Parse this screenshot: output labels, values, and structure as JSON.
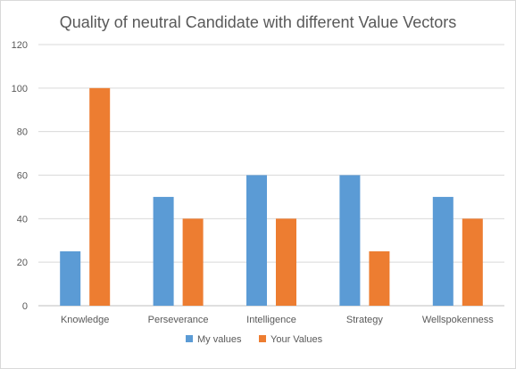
{
  "chart_data": {
    "type": "bar",
    "title": "Quality of neutral Candidate with different Value Vectors",
    "xlabel": "",
    "ylabel": "",
    "categories": [
      "Knowledge",
      "Perseverance",
      "Intelligence",
      "Strategy",
      "Wellspokenness"
    ],
    "series": [
      {
        "name": "My values",
        "values": [
          25,
          50,
          60,
          60,
          50
        ],
        "color": "#5b9bd5"
      },
      {
        "name": "Your Values",
        "values": [
          100,
          40,
          40,
          25,
          40
        ],
        "color": "#ed7d31"
      }
    ],
    "ylim": [
      0,
      120
    ],
    "yticks": [
      0,
      20,
      40,
      60,
      80,
      100,
      120
    ],
    "grid": true,
    "legend": "bottom"
  }
}
